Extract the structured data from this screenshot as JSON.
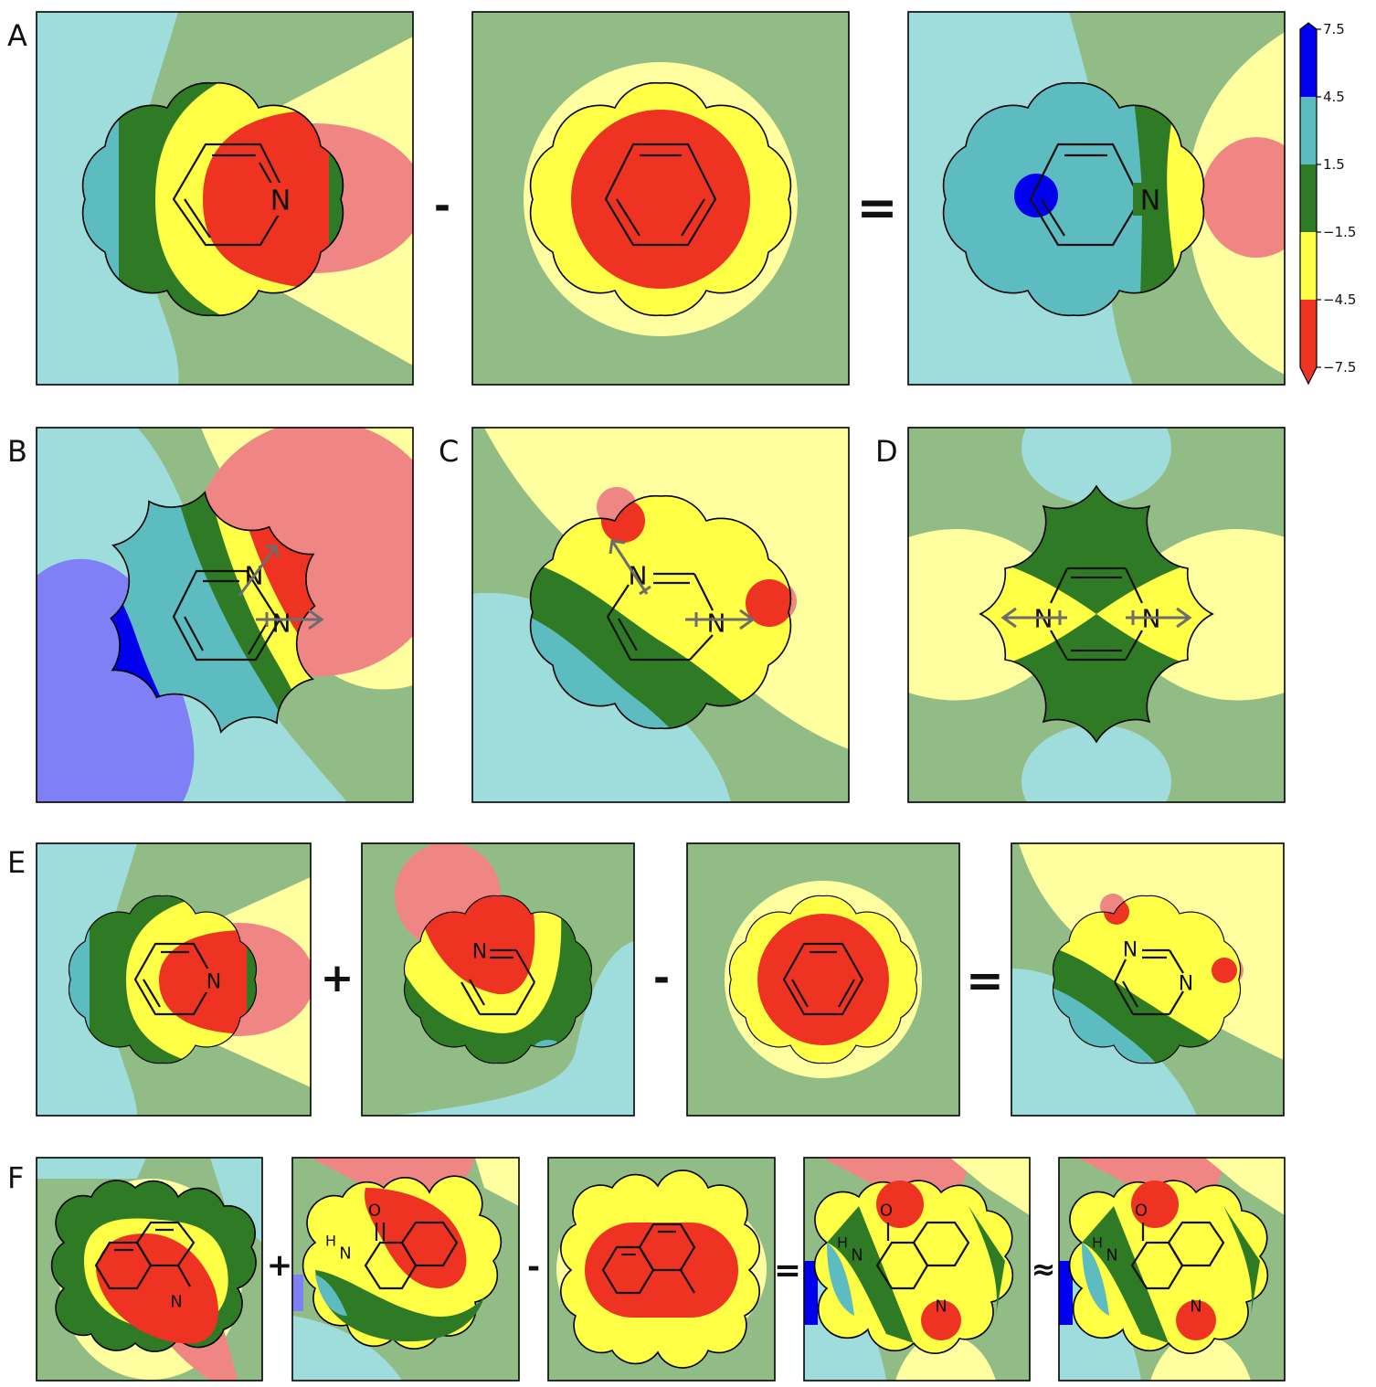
{
  "colors": {
    "blue": "#0000ee",
    "light_blue": "#7f7ff6",
    "cyan": "#5cbcc0",
    "light_cyan": "#9fdcdc",
    "green": "#2f7b25",
    "light_green": "#92bc86",
    "yellow": "#ffff45",
    "light_yellow": "#ffffa0",
    "red": "#ee3322",
    "light_red": "#f08683",
    "outline": "#000000",
    "arrow": "#6d6d6d"
  },
  "row_labels": [
    "A",
    "B",
    "C",
    "D",
    "E",
    "F"
  ],
  "operators": {
    "minus": "-",
    "plus": "+",
    "equals": "=",
    "approx": "≈"
  },
  "atoms": {
    "nitrogen": "N",
    "oxygen": "O",
    "hydrogen": "H"
  },
  "colorbar": {
    "ticks": [
      "7.5",
      "4.5",
      "1.5",
      "−1.5",
      "−4.5",
      "−7.5"
    ],
    "bands_top_to_bottom": [
      "blue",
      "cyan",
      "green",
      "yellow",
      "red"
    ]
  },
  "panels": {
    "A": [
      "pyridine",
      "benzene",
      "pyridine-minus-benzene"
    ],
    "B": [
      "pyridazine"
    ],
    "C": [
      "pyrimidine"
    ],
    "D": [
      "pyrazine"
    ],
    "E": [
      "pyridine",
      "pyridine-rotated",
      "benzene",
      "pyrimidine-sum"
    ],
    "F": [
      "quinoline",
      "isoquinolinone",
      "naphthalene",
      "sum",
      "computed"
    ]
  }
}
